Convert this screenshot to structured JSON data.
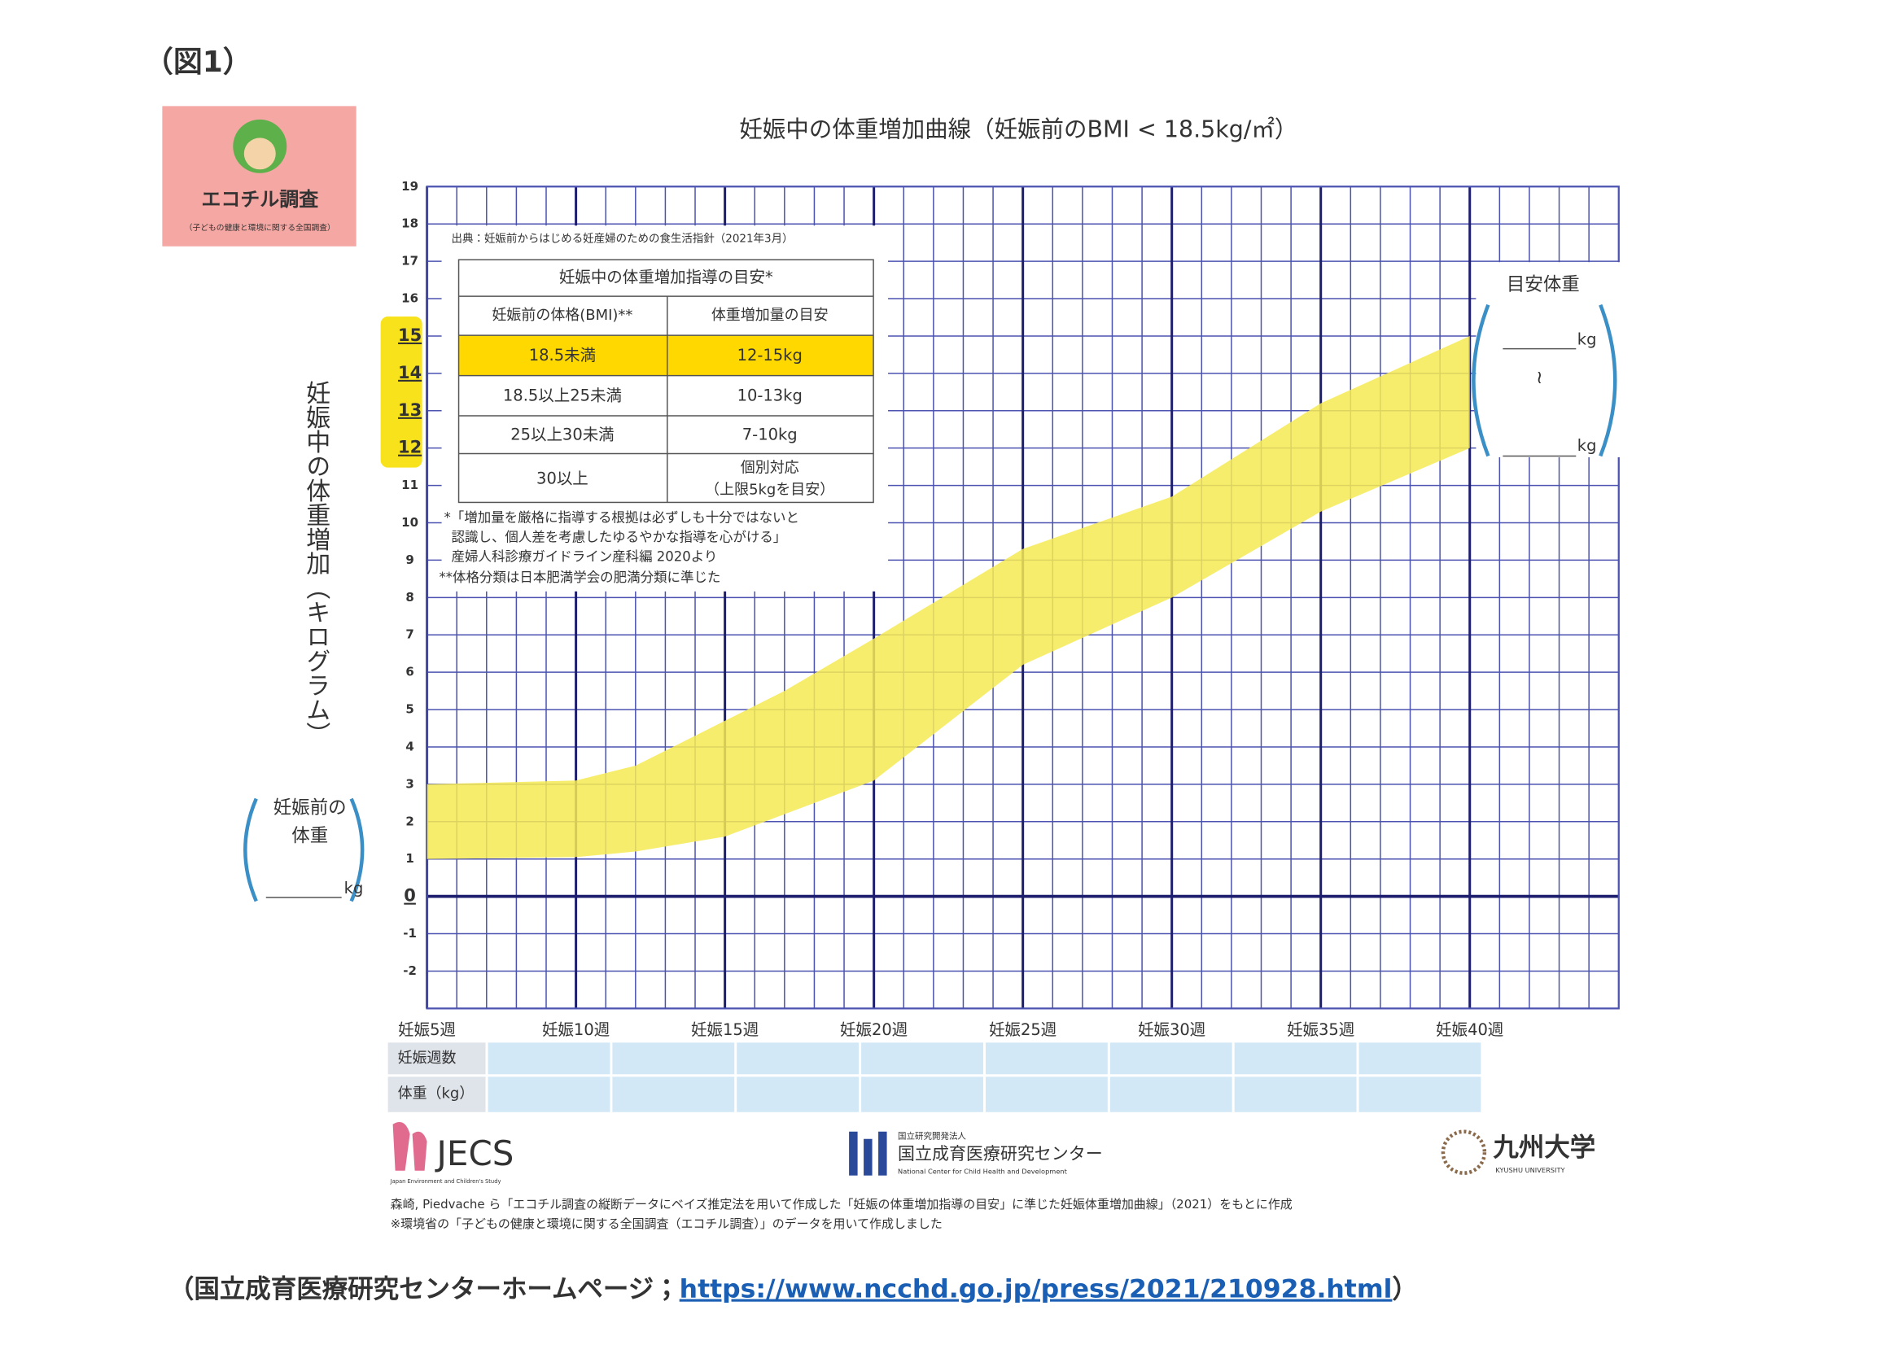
{
  "figure_label": "（図1）",
  "caption": {
    "before": "（国立成育医療研究センターホームページ；",
    "link": "https://www.ncchd.go.jp/press/2021/210928.html",
    "after": "）"
  },
  "logo_top": {
    "name": "エコチル調査",
    "sub": "（子どもの健康と環境に関する全国調査）"
  },
  "logos_bottom": {
    "jecs": "JECS",
    "jecs_sub": "Japan Environment and Children's Study",
    "ncchd_pre": "国立研究開発法人",
    "ncchd": "国立成育医療研究センター",
    "ncchd_en": "National Center for Child Health and Development",
    "kyushu": "九州大学",
    "kyushu_en": "KYUSHU UNIVERSITY"
  },
  "credits": [
    "森崎, Piedvache ら「エコチル調査の縦断データにベイズ推定法を用いて作成した「妊娠の体重増加指導の目安」に準じた妊娠体重増加曲線」（2021）をもとに作成",
    "※環境省の「子どもの健康と環境に関する全国調査（エコチル調査）」のデータを用いて作成しました"
  ],
  "chart_data": {
    "type": "band",
    "title": "妊娠中の体重増加曲線（妊娠前のBMI < 18.5kg/㎡）",
    "y_label": "妊娠中の体重増加（キログラム）",
    "source": "出典：妊娠前からはじめる妊産婦のための食生活指針（2021年3月）",
    "x": [
      5,
      10,
      12,
      15,
      17,
      20,
      25,
      30,
      35,
      40
    ],
    "lower": [
      1,
      1.05,
      1.2,
      1.6,
      2.2,
      3.1,
      6.2,
      8.0,
      10.3,
      12
    ],
    "upper": [
      3,
      3.1,
      3.5,
      4.7,
      5.5,
      6.9,
      9.3,
      10.7,
      13.2,
      15
    ],
    "color": "#f6ea52",
    "grid_color": "#4b52b0",
    "xlim": [
      5,
      45
    ],
    "ylim": [
      -3,
      19
    ],
    "xticks": [
      {
        "value": 5,
        "label": "妊娠5週"
      },
      {
        "value": 10,
        "label": "妊娠10週"
      },
      {
        "value": 15,
        "label": "妊娠15週"
      },
      {
        "value": 20,
        "label": "妊娠20週"
      },
      {
        "value": 25,
        "label": "妊娠25週"
      },
      {
        "value": 30,
        "label": "妊娠30週"
      },
      {
        "value": 35,
        "label": "妊娠35週"
      },
      {
        "value": 40,
        "label": "妊娠40週"
      }
    ],
    "yticks": [
      -2,
      -1,
      0,
      1,
      2,
      3,
      4,
      5,
      6,
      7,
      8,
      9,
      10,
      11,
      12,
      13,
      14,
      15,
      16,
      17,
      18,
      19
    ],
    "highlight_range": [
      12,
      15
    ],
    "highlight_color": "#f7e21c",
    "guide_table": {
      "title": "妊娠中の体重増加指導の目安*",
      "header": [
        "妊娠前の体格(BMI)**",
        "体重増加量の目安"
      ],
      "rows": [
        [
          "18.5未満",
          "12-15kg"
        ],
        [
          "18.5以上25未満",
          "10-13kg"
        ],
        [
          "25以上30未満",
          "7-10kg"
        ],
        [
          "30以上",
          "個別対応",
          "（上限5kgを目安）"
        ]
      ],
      "highlight_color": "#ffd800",
      "notes": [
        "*「増加量を厳格に指導する根拠は必ずしも十分ではないと",
        "認識し、個人差を考慮したゆるやかな指導を心がける」",
        "産婦人科診療ガイドライン産科編 2020より",
        "**体格分類は日本肥満学会の肥満分類に準じた"
      ]
    },
    "pre_weight": {
      "label_1": "妊娠前の",
      "label_2": "体重",
      "unit": "kg"
    },
    "target_weight": {
      "label": "目安体重",
      "unit_upper": "kg",
      "range_mark": "≀",
      "unit_lower": "kg"
    },
    "record_table": {
      "rows": [
        "妊娠週数",
        "体重（kg）"
      ]
    }
  }
}
